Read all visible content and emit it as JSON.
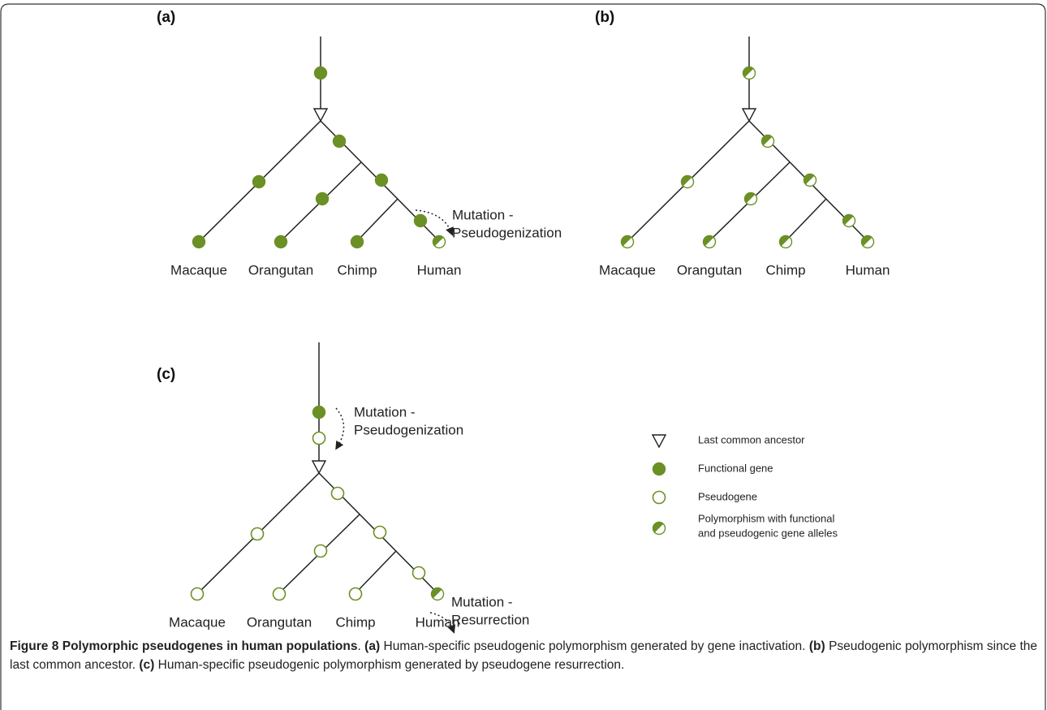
{
  "panels": [
    {
      "label": "(a)",
      "species": [
        "Macaque",
        "Orangutan",
        "Chimp",
        "Human"
      ],
      "annotations": [
        {
          "lines": [
            "Mutation -",
            "Pseudogenization"
          ]
        }
      ],
      "root_nodes": [
        "functional"
      ],
      "branch_nodes": [
        "functional",
        "functional",
        "functional",
        "functional",
        "functional"
      ],
      "leaf_nodes": [
        "functional",
        "functional",
        "functional",
        "polymorphism"
      ]
    },
    {
      "label": "(b)",
      "species": [
        "Macaque",
        "Orangutan",
        "Chimp",
        "Human"
      ],
      "annotations": [],
      "root_nodes": [
        "polymorphism"
      ],
      "branch_nodes": [
        "polymorphism",
        "polymorphism",
        "polymorphism",
        "polymorphism",
        "polymorphism"
      ],
      "leaf_nodes": [
        "polymorphism",
        "polymorphism",
        "polymorphism",
        "polymorphism"
      ]
    },
    {
      "label": "(c)",
      "species": [
        "Macaque",
        "Orangutan",
        "Chimp",
        "Human"
      ],
      "annotations": [
        {
          "lines": [
            "Mutation -",
            "Pseudogenization"
          ]
        },
        {
          "lines": [
            "Mutation -",
            "Resurrection"
          ]
        }
      ],
      "root_nodes": [
        "functional",
        "pseudogene"
      ],
      "branch_nodes": [
        "pseudogene",
        "pseudogene",
        "pseudogene",
        "pseudogene",
        "pseudogene"
      ],
      "leaf_nodes": [
        "pseudogene",
        "pseudogene",
        "pseudogene",
        "polymorphism"
      ]
    }
  ],
  "legend": [
    {
      "symbol": "ancestor",
      "lines": [
        "Last common ancestor"
      ]
    },
    {
      "symbol": "functional",
      "lines": [
        "Functional gene"
      ]
    },
    {
      "symbol": "pseudogene",
      "lines": [
        "Pseudogene"
      ]
    },
    {
      "symbol": "polymorphism",
      "lines": [
        "Polymorphism with functional",
        "and pseudogenic gene alleles"
      ]
    }
  ],
  "caption": {
    "title": "Figure 8 Polymorphic pseudogenes in human populations",
    "title_end": ".",
    "items": [
      {
        "label": "(a)",
        "text": "Human-specific pseudogenic polymorphism generated by gene inactivation."
      },
      {
        "label": "(b)",
        "text": "Pseudogenic polymorphism since the last common ancestor."
      },
      {
        "label": "(c)",
        "text": "Human-specific pseudogenic polymorphism generated by pseudogene resurrection."
      }
    ]
  }
}
